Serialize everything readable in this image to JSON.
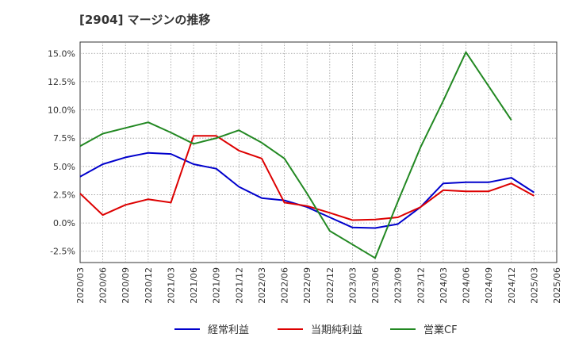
{
  "chart_data": {
    "type": "line",
    "title": "[2904]  マージンの推移",
    "x": [
      "2020/03",
      "2020/06",
      "2020/09",
      "2020/12",
      "2021/03",
      "2021/06",
      "2021/09",
      "2021/12",
      "2022/03",
      "2022/06",
      "2022/09",
      "2022/12",
      "2023/03",
      "2023/06",
      "2023/09",
      "2023/12",
      "2024/03",
      "2024/06",
      "2024/09",
      "2024/12",
      "2025/03",
      "2025/06"
    ],
    "ylim": [
      -3.5,
      16.0
    ],
    "yticks": [
      -2.5,
      0.0,
      2.5,
      5.0,
      7.5,
      10.0,
      12.5,
      15.0
    ],
    "ytick_labels": [
      "-2.5%",
      "0.0%",
      "2.5%",
      "5.0%",
      "7.5%",
      "10.0%",
      "12.5%",
      "15.0%"
    ],
    "grid": true,
    "legend_position": "bottom",
    "series": [
      {
        "name": "経常利益",
        "color": "#0000cc",
        "values": [
          4.1,
          5.2,
          5.8,
          6.2,
          6.1,
          5.2,
          4.8,
          3.2,
          2.2,
          2.0,
          1.4,
          0.5,
          -0.4,
          -0.45,
          -0.1,
          1.4,
          3.5,
          3.6,
          3.6,
          4.0,
          2.7,
          null
        ]
      },
      {
        "name": "当期純利益",
        "color": "#dd0000",
        "values": [
          2.6,
          0.7,
          1.6,
          2.1,
          1.8,
          7.7,
          7.7,
          6.4,
          5.7,
          1.8,
          1.5,
          0.9,
          0.25,
          0.3,
          0.5,
          1.4,
          2.9,
          2.8,
          2.8,
          3.5,
          2.4,
          null
        ]
      },
      {
        "name": "営業CF",
        "color": "#228822",
        "values": [
          6.8,
          7.9,
          8.4,
          8.9,
          8.0,
          7.0,
          7.5,
          8.2,
          7.1,
          5.7,
          2.6,
          -0.7,
          -1.9,
          -3.1,
          1.9,
          6.7,
          10.8,
          15.1,
          12.1,
          9.1,
          null,
          null
        ]
      }
    ]
  }
}
